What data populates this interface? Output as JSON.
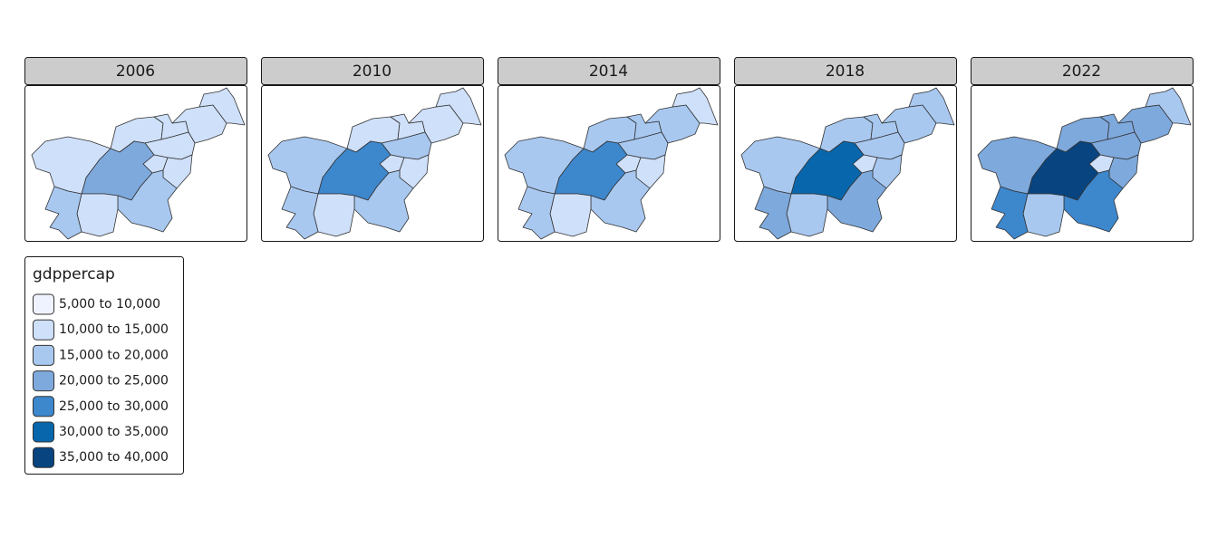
{
  "panels": [
    {
      "title": "2006",
      "fills": [
        "#cfe0fa",
        "#cfe0fa",
        "#cfe0fa",
        "#cfe0fa",
        "#cfe0fa",
        "#cfe0fa",
        "#cfe0fa",
        "#7ea9dd",
        "#a8c8f0",
        "#cfe0fa",
        "#cfe0fa",
        "#a8c8f0"
      ]
    },
    {
      "title": "2010",
      "fills": [
        "#cfe0fa",
        "#cfe0fa",
        "#cfe0fa",
        "#cfe0fa",
        "#a8c8f0",
        "#cfe0fa",
        "#cfe0fa",
        "#3d87cd",
        "#a8c8f0",
        "#cfe0fa",
        "#a8c8f0",
        "#a8c8f0"
      ]
    },
    {
      "title": "2014",
      "fills": [
        "#a8c8f0",
        "#a8c8f0",
        "#a8c8f0",
        "#cfe0fa",
        "#a8c8f0",
        "#cfe0fa",
        "#cfe0fa",
        "#3d87cd",
        "#a8c8f0",
        "#cfe0fa",
        "#a8c8f0",
        "#a8c8f0"
      ]
    },
    {
      "title": "2018",
      "fills": [
        "#a8c8f0",
        "#a8c8f0",
        "#a8c8f0",
        "#a8c8f0",
        "#a8c8f0",
        "#cfe0fa",
        "#a8c8f0",
        "#0867ac",
        "#7ea9dd",
        "#a8c8f0",
        "#a8c8f0",
        "#7ea9dd"
      ]
    },
    {
      "title": "2022",
      "fills": [
        "#7ea9dd",
        "#7ea9dd",
        "#7ea9dd",
        "#a8c8f0",
        "#7ea9dd",
        "#cfe0fa",
        "#7ea9dd",
        "#084480",
        "#3d87cd",
        "#a8c8f0",
        "#7ea9dd",
        "#3d87cd"
      ]
    }
  ],
  "legend": {
    "title": "gdppercap",
    "items": [
      {
        "label": "5,000 to 10,000",
        "color": "#eff3ff"
      },
      {
        "label": "10,000 to 15,000",
        "color": "#cfe0fa"
      },
      {
        "label": "15,000 to 20,000",
        "color": "#a8c8f0"
      },
      {
        "label": "20,000 to 25,000",
        "color": "#7ea9dd"
      },
      {
        "label": "25,000 to 30,000",
        "color": "#3d87cd"
      },
      {
        "label": "30,000 to 35,000",
        "color": "#0867ac"
      },
      {
        "label": "35,000 to 40,000",
        "color": "#084480"
      }
    ]
  }
}
